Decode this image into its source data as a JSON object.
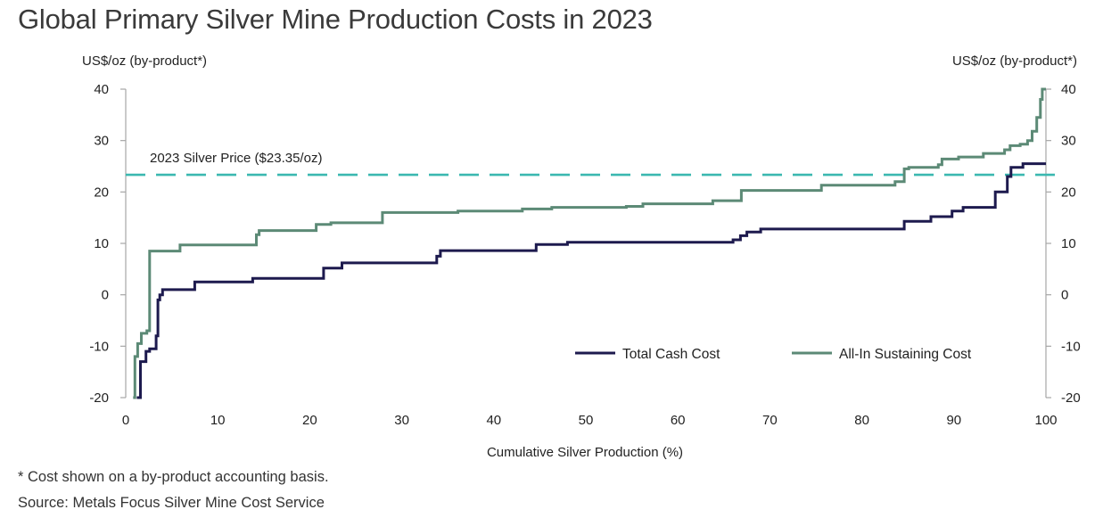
{
  "chart_data": {
    "type": "line",
    "title": "Global Primary Silver Mine Production Costs in 2023",
    "xlabel": "Cumulative Silver Production (%)",
    "ylabel_left": "US$/oz (by-product*)",
    "ylabel_right": "US$/oz (by-product*)",
    "xlim": [
      0,
      100
    ],
    "ylim": [
      -20,
      40
    ],
    "x_ticks": [
      0,
      10,
      20,
      30,
      40,
      50,
      60,
      70,
      80,
      90,
      100
    ],
    "y_ticks": [
      -20,
      -10,
      0,
      10,
      20,
      30,
      40
    ],
    "reference_line": {
      "label": "2023 Silver Price ($23.35/oz)",
      "value": 23.35,
      "color": "#3bb8b0"
    },
    "legend_position": "bottom-right",
    "series": [
      {
        "name": "Total Cash Cost",
        "color": "#1d1a4e",
        "step": true,
        "x": [
          1.2,
          1.6,
          2.2,
          2.6,
          3.3,
          3.5,
          3.7,
          4.0,
          7.5,
          13.8,
          21.5,
          23.5,
          33.8,
          34.2,
          44.6,
          48.0,
          66.0,
          66.8,
          67.5,
          69.0,
          84.6,
          87.5,
          89.8,
          91.0,
          94.5,
          95.8,
          96.2,
          97.5,
          100.0
        ],
        "values": [
          -20,
          -13,
          -11,
          -10.5,
          -8,
          -1,
          0,
          1,
          2.5,
          3.2,
          5.2,
          6.2,
          7.5,
          8.6,
          9.8,
          10.2,
          10.7,
          11.5,
          12.2,
          12.8,
          14.3,
          15.2,
          16.3,
          17.0,
          20.0,
          23.0,
          24.8,
          25.5,
          25.5
        ]
      },
      {
        "name": "All-In Sustaining Cost",
        "color": "#5c8a76",
        "step": true,
        "x": [
          0.8,
          1.0,
          1.3,
          1.7,
          2.3,
          2.6,
          5.9,
          14.2,
          14.5,
          20.7,
          22.3,
          27.9,
          36.1,
          43.1,
          46.3,
          54.4,
          56.2,
          63.8,
          66.9,
          75.6,
          83.6,
          84.6,
          85.1,
          88.3,
          88.7,
          90.5,
          93.2,
          95.5,
          96.1,
          97.2,
          98.0,
          98.5,
          99.0,
          99.4,
          99.6,
          100.0
        ],
        "values": [
          -20,
          -12,
          -9.5,
          -7.5,
          -7,
          8.5,
          9.7,
          11.7,
          12.5,
          13.7,
          14.0,
          16.0,
          16.3,
          16.7,
          17.0,
          17.2,
          17.7,
          18.3,
          20.3,
          21.3,
          22.0,
          24.5,
          24.8,
          25.3,
          26.4,
          26.8,
          27.5,
          28.2,
          29.0,
          29.3,
          30.0,
          31.8,
          34.5,
          38.0,
          40.0,
          40.0
        ]
      }
    ]
  },
  "footnotes": {
    "note": "* Cost shown on a by-product accounting basis.",
    "source": "Source: Metals Focus Silver Mine Cost Service"
  }
}
